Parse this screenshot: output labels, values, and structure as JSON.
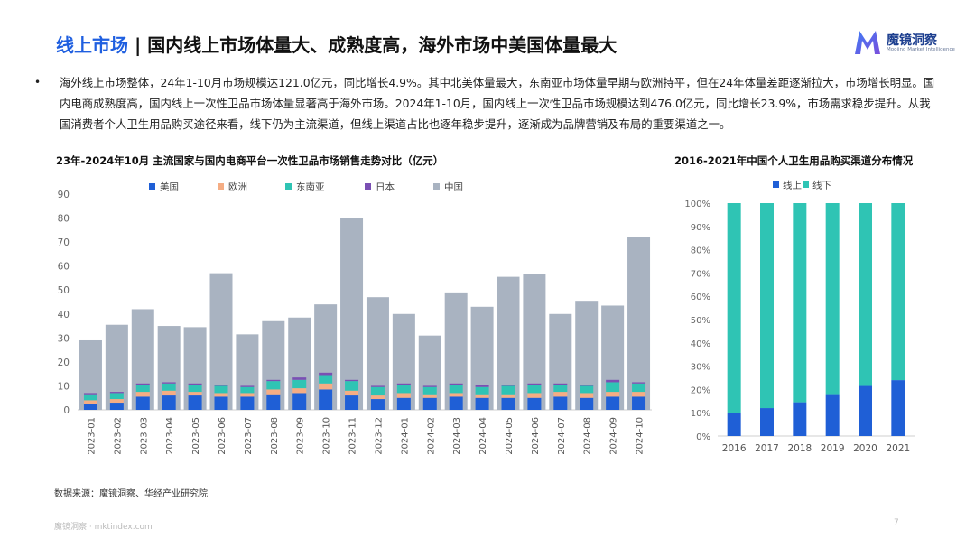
{
  "page": {
    "title_highlight": "线上市场",
    "title_sep": " | ",
    "title_rest": "国内线上市场体量大、成熟度高，海外市场中美国体量最大",
    "logo_cn": "魔镜洞察",
    "logo_en": "Moojing Market Intelligence",
    "bullet": "•",
    "summary": "海外线上市场整体，24年1-10月市场规模达121.0亿元，同比增长4.9%。其中北美体量最大，东南亚市场体量早期与欧洲持平，但在24年体量差距逐渐拉大，市场增长明显。国内电商成熟度高，国内线上一次性卫品市场体量显著高于海外市场。2024年1-10月，国内线上一次性卫品市场规模达到476.0亿元，同比增长23.9%，市场需求稳步提升。从我国消费者个人卫生用品购买途径来看，线下仍为主流渠道，但线上渠道占比也逐年稳步提升，逐渐成为品牌营销及布局的重要渠道之一。",
    "source": "数据来源：魔镜洞察、华经产业研究院",
    "footer": "魔镜洞察 · mktindex.com",
    "page_number": "7"
  },
  "chart_data": [
    {
      "type": "bar",
      "stacked": false,
      "title": "23年-2024年10月 主流国家与国内电商平台一次性卫品市场销售走势对比（亿元）",
      "categories": [
        "2023-01",
        "2023-02",
        "2023-03",
        "2023-04",
        "2023-05",
        "2023-06",
        "2023-07",
        "2023-08",
        "2023-09",
        "2023-10",
        "2023-11",
        "2023-12",
        "2024-01",
        "2024-02",
        "2024-03",
        "2024-04",
        "2024-05",
        "2024-06",
        "2024-07",
        "2024-08",
        "2024-09",
        "2024-10"
      ],
      "ylim": [
        0,
        90
      ],
      "yticks": [
        0,
        10,
        20,
        30,
        40,
        50,
        60,
        70,
        80,
        90
      ],
      "legend_position": "top",
      "grid": false,
      "series": [
        {
          "name": "中国",
          "color": "#a9b3c1",
          "values": [
            29,
            35.5,
            42,
            35,
            34.5,
            57,
            31.5,
            37,
            38.5,
            44,
            80,
            47,
            40,
            31,
            49,
            43,
            55.5,
            56.5,
            40,
            45.5,
            43.5,
            72
          ]
        },
        {
          "name": "美国",
          "color": "#1f5fd6",
          "values": [
            2.5,
            3,
            5.5,
            6,
            6,
            5.5,
            5.5,
            6.5,
            7,
            8.5,
            6,
            4.5,
            5,
            5,
            5.5,
            5,
            5,
            5,
            5.5,
            5,
            5.5,
            5.5
          ]
        },
        {
          "name": "欧洲",
          "color": "#f5ad84",
          "values": [
            1.5,
            1.5,
            2,
            2,
            1.5,
            1.5,
            1.5,
            2,
            2,
            2.5,
            2,
            1.5,
            2,
            1.5,
            1.5,
            1.5,
            1.5,
            2,
            2,
            2,
            2,
            2
          ]
        },
        {
          "name": "东南亚",
          "color": "#2fc4b4",
          "values": [
            2.5,
            2.5,
            3,
            3,
            3,
            3,
            2.5,
            3.5,
            3.5,
            3.5,
            4,
            3.5,
            3.5,
            3,
            3.5,
            3,
            3.5,
            3.5,
            3,
            3,
            4,
            3.5
          ]
        },
        {
          "name": "日本",
          "color": "#7a4fb3",
          "values": [
            0.5,
            0.5,
            0.5,
            0.5,
            0.5,
            0.5,
            0.5,
            0.5,
            1,
            1,
            0.5,
            0.5,
            0.5,
            0.5,
            0.5,
            1,
            0.5,
            0.5,
            0.5,
            0.5,
            1,
            0.5
          ]
        }
      ]
    },
    {
      "type": "bar",
      "stacked": true,
      "percent": true,
      "title": "2016-2021年中国个人卫生用品购买渠道分布情况",
      "categories": [
        "2016",
        "2017",
        "2018",
        "2019",
        "2020",
        "2021"
      ],
      "ylim": [
        0,
        100
      ],
      "yticks": [
        "0%",
        "10%",
        "20%",
        "30%",
        "40%",
        "50%",
        "60%",
        "70%",
        "80%",
        "90%",
        "100%"
      ],
      "legend_position": "top",
      "grid": false,
      "series": [
        {
          "name": "线上",
          "color": "#1f5fd6",
          "values": [
            10,
            12,
            14.5,
            18,
            21.5,
            24
          ]
        },
        {
          "name": "线下",
          "color": "#2fc4b4",
          "values": [
            90,
            88,
            85.5,
            82,
            78.5,
            76
          ]
        }
      ]
    }
  ]
}
